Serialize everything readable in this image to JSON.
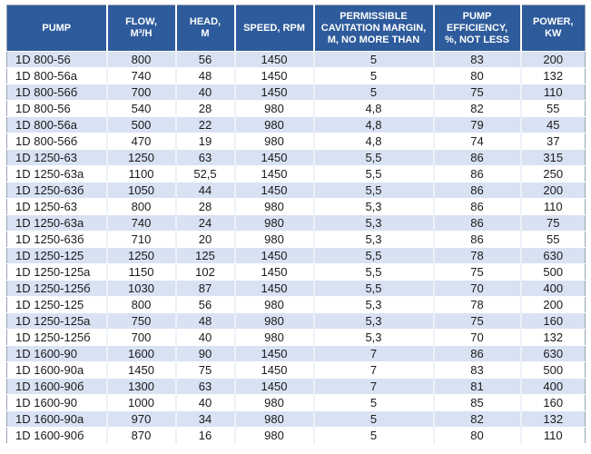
{
  "table": {
    "columns": [
      {
        "key": "pump",
        "label": "PUMP"
      },
      {
        "key": "flow",
        "label": "FLOW,\nM³/H"
      },
      {
        "key": "head",
        "label": "HEAD,\nM"
      },
      {
        "key": "speed",
        "label": "SPEED, RPM"
      },
      {
        "key": "cavitation",
        "label": "PERMISSIBLE\nCAVITATION MARGIN,\nM, NO MORE THAN"
      },
      {
        "key": "efficiency",
        "label": "PUMP\nEFFICIENCY,\n%, NOT LESS"
      },
      {
        "key": "power",
        "label": "POWER,\nKW"
      }
    ],
    "rows": [
      [
        "1D 800-56",
        "800",
        "56",
        "1450",
        "5",
        "83",
        "200"
      ],
      [
        "1D 800-56a",
        "740",
        "48",
        "1450",
        "5",
        "80",
        "132"
      ],
      [
        "1D 800-56б",
        "700",
        "40",
        "1450",
        "5",
        "75",
        "110"
      ],
      [
        "1D 800-56",
        "540",
        "28",
        "980",
        "4,8",
        "82",
        "55"
      ],
      [
        "1D 800-56a",
        "500",
        "22",
        "980",
        "4,8",
        "79",
        "45"
      ],
      [
        "1D 800-56б",
        "470",
        "19",
        "980",
        "4,8",
        "74",
        "37"
      ],
      [
        "1D 1250-63",
        "1250",
        "63",
        "1450",
        "5,5",
        "86",
        "315"
      ],
      [
        "1D 1250-63a",
        "1100",
        "52,5",
        "1450",
        "5,5",
        "86",
        "250"
      ],
      [
        "1D 1250-63б",
        "1050",
        "44",
        "1450",
        "5,5",
        "86",
        "200"
      ],
      [
        "1D 1250-63",
        "800",
        "28",
        "980",
        "5,3",
        "86",
        "110"
      ],
      [
        "1D 1250-63a",
        "740",
        "24",
        "980",
        "5,3",
        "86",
        "75"
      ],
      [
        "1D 1250-63б",
        "710",
        "20",
        "980",
        "5,3",
        "86",
        "55"
      ],
      [
        "1D 1250-125",
        "1250",
        "125",
        "1450",
        "5,5",
        "78",
        "630"
      ],
      [
        "1D 1250-125a",
        "1150",
        "102",
        "1450",
        "5,5",
        "75",
        "500"
      ],
      [
        "1D 1250-125б",
        "1030",
        "87",
        "1450",
        "5,5",
        "70",
        "400"
      ],
      [
        "1D 1250-125",
        "800",
        "56",
        "980",
        "5,3",
        "78",
        "200"
      ],
      [
        "1D 1250-125a",
        "750",
        "48",
        "980",
        "5,3",
        "75",
        "160"
      ],
      [
        "1D 1250-125б",
        "700",
        "40",
        "980",
        "5,3",
        "70",
        "132"
      ],
      [
        "1D 1600-90",
        "1600",
        "90",
        "1450",
        "7",
        "86",
        "630"
      ],
      [
        "1D 1600-90a",
        "1450",
        "75",
        "1450",
        "7",
        "83",
        "500"
      ],
      [
        "1D 1600-90б",
        "1300",
        "63",
        "1450",
        "7",
        "81",
        "400"
      ],
      [
        "1D 1600-90",
        "1000",
        "40",
        "980",
        "5",
        "85",
        "160"
      ],
      [
        "1D 1600-90a",
        "970",
        "34",
        "980",
        "5",
        "82",
        "132"
      ],
      [
        "1D 1600-90б",
        "870",
        "16",
        "980",
        "5",
        "80",
        "110"
      ]
    ]
  },
  "colors": {
    "header_bg": "#2E5B9B",
    "header_text": "#FFFFFF",
    "row_alt_bg": "#D9E2F3",
    "row_bg": "#FFFFFF",
    "text": "#1A1A1A"
  }
}
